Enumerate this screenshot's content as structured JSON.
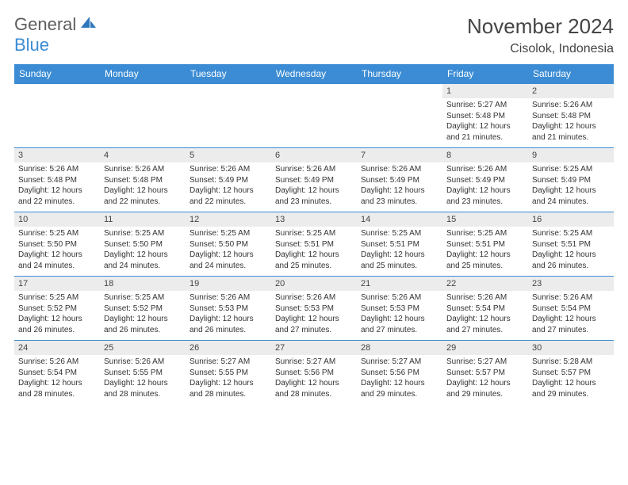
{
  "brand": {
    "part1": "General",
    "part2": "Blue"
  },
  "title": "November 2024",
  "location": "Cisolok, Indonesia",
  "colors": {
    "accent": "#3b8cd4",
    "header_bg": "#3b8cd4",
    "daynum_bg": "#ececec",
    "text": "#333333"
  },
  "day_headers": [
    "Sunday",
    "Monday",
    "Tuesday",
    "Wednesday",
    "Thursday",
    "Friday",
    "Saturday"
  ],
  "weeks": [
    [
      {
        "n": "",
        "sr": "",
        "ss": "",
        "dl": ""
      },
      {
        "n": "",
        "sr": "",
        "ss": "",
        "dl": ""
      },
      {
        "n": "",
        "sr": "",
        "ss": "",
        "dl": ""
      },
      {
        "n": "",
        "sr": "",
        "ss": "",
        "dl": ""
      },
      {
        "n": "",
        "sr": "",
        "ss": "",
        "dl": ""
      },
      {
        "n": "1",
        "sr": "Sunrise: 5:27 AM",
        "ss": "Sunset: 5:48 PM",
        "dl": "Daylight: 12 hours and 21 minutes."
      },
      {
        "n": "2",
        "sr": "Sunrise: 5:26 AM",
        "ss": "Sunset: 5:48 PM",
        "dl": "Daylight: 12 hours and 21 minutes."
      }
    ],
    [
      {
        "n": "3",
        "sr": "Sunrise: 5:26 AM",
        "ss": "Sunset: 5:48 PM",
        "dl": "Daylight: 12 hours and 22 minutes."
      },
      {
        "n": "4",
        "sr": "Sunrise: 5:26 AM",
        "ss": "Sunset: 5:48 PM",
        "dl": "Daylight: 12 hours and 22 minutes."
      },
      {
        "n": "5",
        "sr": "Sunrise: 5:26 AM",
        "ss": "Sunset: 5:49 PM",
        "dl": "Daylight: 12 hours and 22 minutes."
      },
      {
        "n": "6",
        "sr": "Sunrise: 5:26 AM",
        "ss": "Sunset: 5:49 PM",
        "dl": "Daylight: 12 hours and 23 minutes."
      },
      {
        "n": "7",
        "sr": "Sunrise: 5:26 AM",
        "ss": "Sunset: 5:49 PM",
        "dl": "Daylight: 12 hours and 23 minutes."
      },
      {
        "n": "8",
        "sr": "Sunrise: 5:26 AM",
        "ss": "Sunset: 5:49 PM",
        "dl": "Daylight: 12 hours and 23 minutes."
      },
      {
        "n": "9",
        "sr": "Sunrise: 5:25 AM",
        "ss": "Sunset: 5:49 PM",
        "dl": "Daylight: 12 hours and 24 minutes."
      }
    ],
    [
      {
        "n": "10",
        "sr": "Sunrise: 5:25 AM",
        "ss": "Sunset: 5:50 PM",
        "dl": "Daylight: 12 hours and 24 minutes."
      },
      {
        "n": "11",
        "sr": "Sunrise: 5:25 AM",
        "ss": "Sunset: 5:50 PM",
        "dl": "Daylight: 12 hours and 24 minutes."
      },
      {
        "n": "12",
        "sr": "Sunrise: 5:25 AM",
        "ss": "Sunset: 5:50 PM",
        "dl": "Daylight: 12 hours and 24 minutes."
      },
      {
        "n": "13",
        "sr": "Sunrise: 5:25 AM",
        "ss": "Sunset: 5:51 PM",
        "dl": "Daylight: 12 hours and 25 minutes."
      },
      {
        "n": "14",
        "sr": "Sunrise: 5:25 AM",
        "ss": "Sunset: 5:51 PM",
        "dl": "Daylight: 12 hours and 25 minutes."
      },
      {
        "n": "15",
        "sr": "Sunrise: 5:25 AM",
        "ss": "Sunset: 5:51 PM",
        "dl": "Daylight: 12 hours and 25 minutes."
      },
      {
        "n": "16",
        "sr": "Sunrise: 5:25 AM",
        "ss": "Sunset: 5:51 PM",
        "dl": "Daylight: 12 hours and 26 minutes."
      }
    ],
    [
      {
        "n": "17",
        "sr": "Sunrise: 5:25 AM",
        "ss": "Sunset: 5:52 PM",
        "dl": "Daylight: 12 hours and 26 minutes."
      },
      {
        "n": "18",
        "sr": "Sunrise: 5:25 AM",
        "ss": "Sunset: 5:52 PM",
        "dl": "Daylight: 12 hours and 26 minutes."
      },
      {
        "n": "19",
        "sr": "Sunrise: 5:26 AM",
        "ss": "Sunset: 5:53 PM",
        "dl": "Daylight: 12 hours and 26 minutes."
      },
      {
        "n": "20",
        "sr": "Sunrise: 5:26 AM",
        "ss": "Sunset: 5:53 PM",
        "dl": "Daylight: 12 hours and 27 minutes."
      },
      {
        "n": "21",
        "sr": "Sunrise: 5:26 AM",
        "ss": "Sunset: 5:53 PM",
        "dl": "Daylight: 12 hours and 27 minutes."
      },
      {
        "n": "22",
        "sr": "Sunrise: 5:26 AM",
        "ss": "Sunset: 5:54 PM",
        "dl": "Daylight: 12 hours and 27 minutes."
      },
      {
        "n": "23",
        "sr": "Sunrise: 5:26 AM",
        "ss": "Sunset: 5:54 PM",
        "dl": "Daylight: 12 hours and 27 minutes."
      }
    ],
    [
      {
        "n": "24",
        "sr": "Sunrise: 5:26 AM",
        "ss": "Sunset: 5:54 PM",
        "dl": "Daylight: 12 hours and 28 minutes."
      },
      {
        "n": "25",
        "sr": "Sunrise: 5:26 AM",
        "ss": "Sunset: 5:55 PM",
        "dl": "Daylight: 12 hours and 28 minutes."
      },
      {
        "n": "26",
        "sr": "Sunrise: 5:27 AM",
        "ss": "Sunset: 5:55 PM",
        "dl": "Daylight: 12 hours and 28 minutes."
      },
      {
        "n": "27",
        "sr": "Sunrise: 5:27 AM",
        "ss": "Sunset: 5:56 PM",
        "dl": "Daylight: 12 hours and 28 minutes."
      },
      {
        "n": "28",
        "sr": "Sunrise: 5:27 AM",
        "ss": "Sunset: 5:56 PM",
        "dl": "Daylight: 12 hours and 29 minutes."
      },
      {
        "n": "29",
        "sr": "Sunrise: 5:27 AM",
        "ss": "Sunset: 5:57 PM",
        "dl": "Daylight: 12 hours and 29 minutes."
      },
      {
        "n": "30",
        "sr": "Sunrise: 5:28 AM",
        "ss": "Sunset: 5:57 PM",
        "dl": "Daylight: 12 hours and 29 minutes."
      }
    ]
  ]
}
